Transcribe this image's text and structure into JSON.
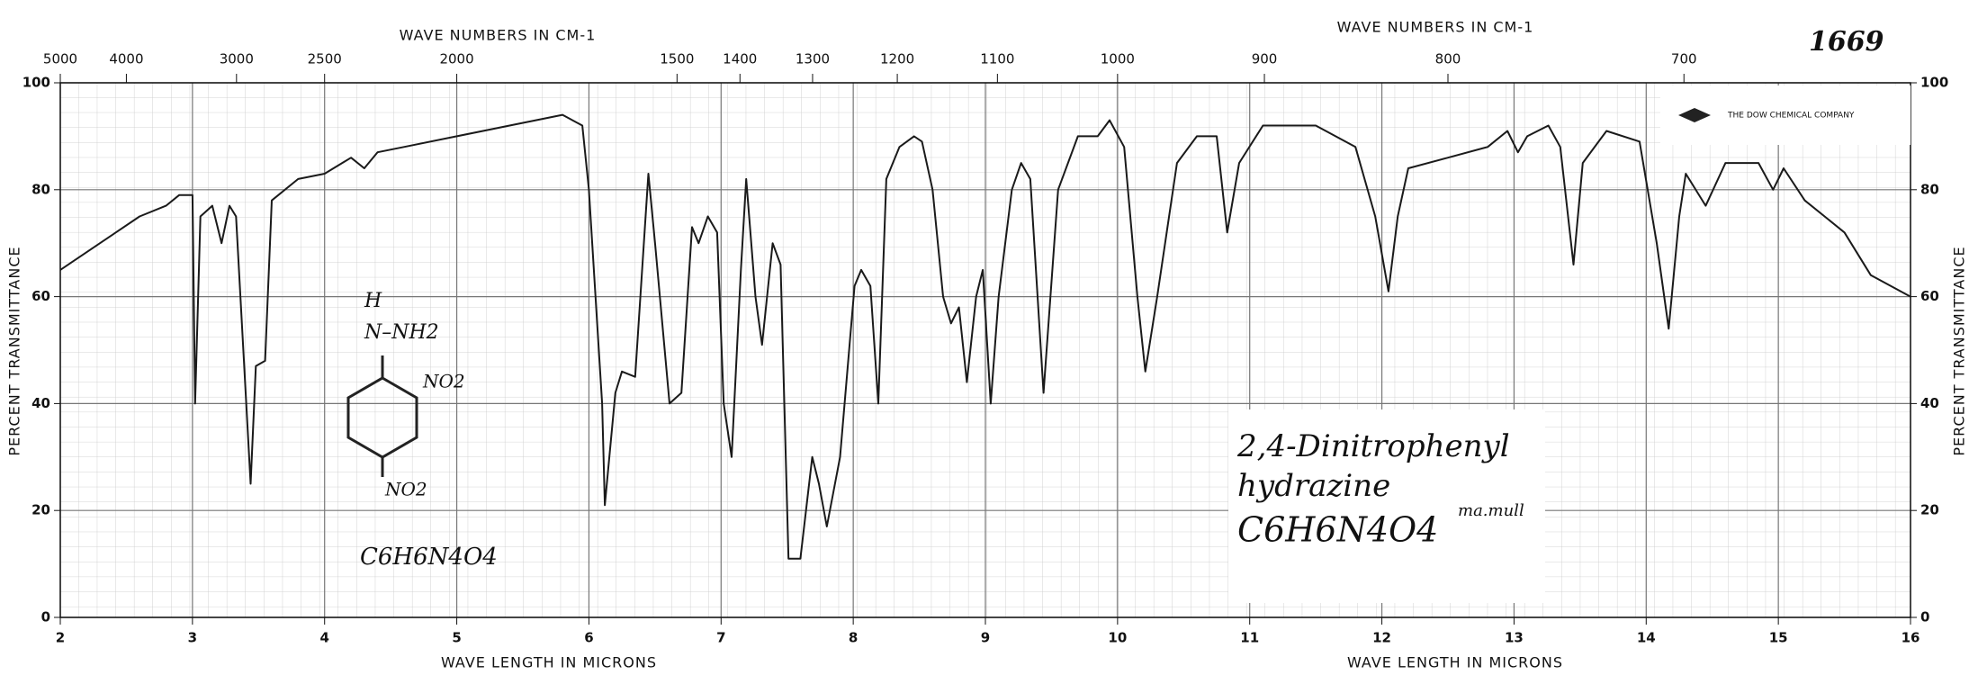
{
  "chart_data": {
    "type": "line",
    "x_label": "WAVE LENGTH IN MICRONS",
    "x_label_2": "WAVE LENGTH IN MICRONS",
    "x2_label": "WAVE NUMBERS IN CM-1",
    "x2_label_2": "WAVE NUMBERS IN CM-1",
    "y_label": "PERCENT TRANSMITTANCE",
    "y2_label": "PERCENT TRANSMITTANCE",
    "xlim": [
      2,
      16
    ],
    "xticks": [
      2,
      3,
      4,
      5,
      6,
      7,
      8,
      9,
      10,
      11,
      12,
      13,
      14,
      15,
      16
    ],
    "x2ticks": [
      5000,
      4000,
      3000,
      2500,
      2000,
      1500,
      1400,
      1300,
      1200,
      1100,
      1000,
      900,
      800,
      700
    ],
    "ylim": [
      0,
      100
    ],
    "yticks": [
      0,
      20,
      40,
      60,
      80,
      100
    ],
    "y2ticks": [
      0,
      20,
      40,
      60,
      80,
      100
    ],
    "grid": true,
    "series": [
      {
        "name": "2,4-Dinitrophenyl hydrazine",
        "color": "#1a1a1a",
        "x": [
          2.0,
          2.3,
          2.6,
          2.8,
          2.9,
          3.0,
          3.02,
          3.06,
          3.15,
          3.22,
          3.28,
          3.33,
          3.44,
          3.48,
          3.55,
          3.6,
          3.8,
          4.0,
          4.2,
          4.3,
          4.4,
          4.6,
          5.0,
          5.4,
          5.8,
          5.95,
          6.0,
          6.1,
          6.12,
          6.2,
          6.25,
          6.35,
          6.45,
          6.5,
          6.61,
          6.7,
          6.78,
          6.83,
          6.9,
          6.97,
          7.02,
          7.08,
          7.15,
          7.19,
          7.26,
          7.31,
          7.39,
          7.45,
          7.51,
          7.6,
          7.69,
          7.74,
          7.8,
          7.9,
          8.01,
          8.06,
          8.13,
          8.19,
          8.25,
          8.35,
          8.46,
          8.52,
          8.6,
          8.68,
          8.74,
          8.8,
          8.86,
          8.93,
          8.98,
          9.04,
          9.1,
          9.2,
          9.27,
          9.34,
          9.44,
          9.55,
          9.7,
          9.85,
          9.94,
          10.05,
          10.15,
          10.21,
          10.3,
          10.45,
          10.6,
          10.75,
          10.83,
          10.92,
          11.1,
          11.5,
          11.8,
          11.95,
          12.05,
          12.12,
          12.2,
          12.5,
          12.8,
          12.95,
          13.03,
          13.1,
          13.26,
          13.35,
          13.45,
          13.52,
          13.7,
          13.95,
          14.08,
          14.17,
          14.25,
          14.3,
          14.45,
          14.6,
          14.85,
          14.96,
          15.04,
          15.2,
          15.5,
          15.7,
          16.0
        ],
        "values": [
          65,
          70,
          75,
          77,
          79,
          79,
          40,
          75,
          77,
          70,
          77,
          75,
          25,
          47,
          48,
          78,
          82,
          83,
          86,
          84,
          87,
          88,
          90,
          92,
          94,
          92,
          80,
          40,
          21,
          42,
          46,
          45,
          83,
          70,
          40,
          42,
          73,
          70,
          75,
          72,
          40,
          30,
          65,
          82,
          60,
          51,
          70,
          66,
          11,
          11,
          30,
          25,
          17,
          30,
          62,
          65,
          62,
          40,
          82,
          88,
          90,
          89,
          80,
          60,
          55,
          58,
          44,
          60,
          65,
          40,
          60,
          80,
          85,
          82,
          42,
          80,
          90,
          90,
          93,
          88,
          60,
          46,
          60,
          85,
          90,
          90,
          72,
          85,
          92,
          92,
          88,
          75,
          61,
          75,
          84,
          86,
          88,
          91,
          87,
          90,
          92,
          88,
          66,
          85,
          91,
          89,
          70,
          54,
          75,
          83,
          77,
          85,
          85,
          80,
          84,
          78,
          72,
          64,
          60
        ]
      }
    ],
    "annotations": {
      "spectrum_number": "1669",
      "company": "THE DOW CHEMICAL COMPANY",
      "name_line_1": "2,4-Dinitrophenyl",
      "name_line_2": "hydrazine",
      "formula": "C6H6N4O4",
      "method": "ma.mull",
      "structure_h": "H",
      "structure_hydrazine": "N–NH2",
      "structure_no2_ortho": "NO2",
      "structure_no2_para": "NO2",
      "structure_formula": "C6H6N4O4"
    }
  }
}
